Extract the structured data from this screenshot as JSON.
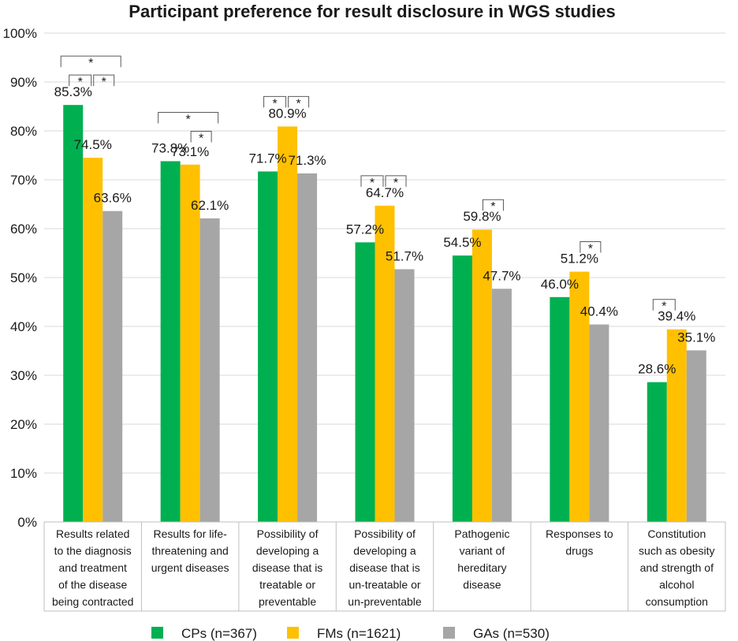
{
  "chart_data": {
    "type": "bar",
    "title": "Participant preference for result disclosure in WGS studies",
    "ylim": [
      0,
      100
    ],
    "yticks": [
      0,
      10,
      20,
      30,
      40,
      50,
      60,
      70,
      80,
      90,
      100
    ],
    "ytick_suffix": "%",
    "grid": true,
    "legend_position": "bottom",
    "categories": [
      [
        "Results related",
        "to the diagnosis",
        "and treatment",
        "of the disease",
        "being contracted"
      ],
      [
        "Results for life-",
        "threatening and",
        "urgent diseases"
      ],
      [
        "Possibility of",
        "developing a",
        "disease that is",
        "treatable or",
        "preventable"
      ],
      [
        "Possibility of",
        "developing a",
        "disease that is",
        "un-treatable or",
        "un-preventable"
      ],
      [
        "Pathogenic",
        "variant of",
        "hereditary",
        "disease"
      ],
      [
        "Responses to",
        "drugs"
      ],
      [
        "Constitution",
        "such as obesity",
        "and strength of",
        "alcohol",
        "consumption"
      ]
    ],
    "series": [
      {
        "name": "CPs (n=367)",
        "color": "#00b050",
        "values": [
          85.3,
          73.8,
          71.7,
          57.2,
          54.5,
          46.0,
          28.6
        ]
      },
      {
        "name": "FMs (n=1621)",
        "color": "#ffc000",
        "values": [
          74.5,
          73.1,
          80.9,
          64.7,
          59.8,
          51.2,
          39.4
        ]
      },
      {
        "name": "GAs (n=530)",
        "color": "#a6a6a6",
        "values": [
          63.6,
          62.1,
          71.3,
          51.7,
          47.7,
          40.4,
          35.1
        ]
      }
    ],
    "data_labels": [
      [
        "85.3%",
        "74.5%",
        "63.6%"
      ],
      [
        "73.8%",
        "73.1%",
        "62.1%"
      ],
      [
        "71.7%",
        "80.9%",
        "71.3%"
      ],
      [
        "57.2%",
        "64.7%",
        "51.7%"
      ],
      [
        "54.5%",
        "59.8%",
        "47.7%"
      ],
      [
        "46.0%",
        "51.2%",
        "40.4%"
      ],
      [
        "28.6%",
        "39.4%",
        "35.1%"
      ]
    ],
    "significance": [
      {
        "category": 0,
        "from": 0,
        "to": 1,
        "label": "*"
      },
      {
        "category": 0,
        "from": 1,
        "to": 2,
        "label": "*"
      },
      {
        "category": 0,
        "from": 0,
        "to": 2,
        "label": "*"
      },
      {
        "category": 1,
        "from": 1,
        "to": 2,
        "label": "*"
      },
      {
        "category": 1,
        "from": 0,
        "to": 2,
        "label": "*"
      },
      {
        "category": 2,
        "from": 0,
        "to": 1,
        "label": "*"
      },
      {
        "category": 2,
        "from": 1,
        "to": 2,
        "label": "*"
      },
      {
        "category": 3,
        "from": 0,
        "to": 1,
        "label": "*"
      },
      {
        "category": 3,
        "from": 1,
        "to": 2,
        "label": "*"
      },
      {
        "category": 4,
        "from": 1,
        "to": 2,
        "label": "*"
      },
      {
        "category": 5,
        "from": 1,
        "to": 2,
        "label": "*"
      },
      {
        "category": 6,
        "from": 0,
        "to": 1,
        "label": "*"
      }
    ]
  }
}
